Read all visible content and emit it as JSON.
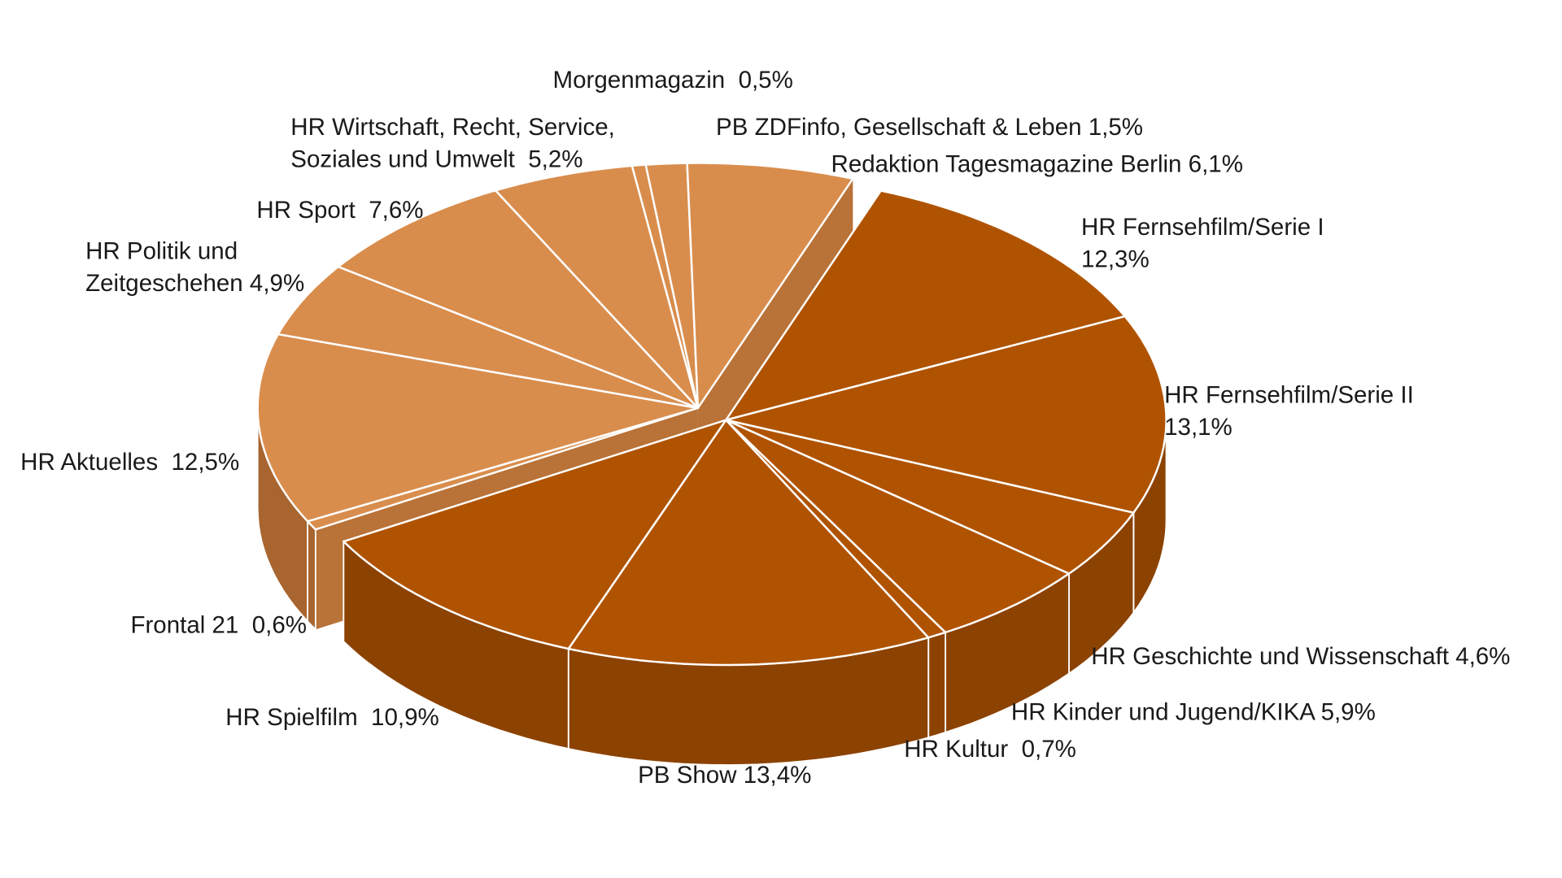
{
  "chart_data": {
    "type": "pie",
    "style": "3d-exploded",
    "title": "",
    "colors": {
      "group_light_top": "#D98D4D",
      "group_light_side": "#A8652F",
      "group_dark_top": "#B05300",
      "group_dark_side": "#8C4200",
      "separator": "#FFFFFF"
    },
    "slices": [
      {
        "name": "HR Fernsehfilm/Serie I",
        "value": 12.3,
        "group": "dark",
        "label_lines": [
          "HR Fernsehfilm/Serie I",
          "12,3%"
        ]
      },
      {
        "name": "HR Fernsehfilm/Serie II",
        "value": 13.1,
        "group": "dark",
        "label_lines": [
          "HR Fernsehfilm/Serie II",
          "13,1%"
        ]
      },
      {
        "name": "HR Geschichte und Wissenschaft",
        "value": 4.6,
        "group": "dark",
        "label_lines": [
          "HR Geschichte und Wissenschaft 4,6%"
        ]
      },
      {
        "name": "HR Kinder und Jugend/KIKA",
        "value": 5.9,
        "group": "dark",
        "label_lines": [
          "HR Kinder und Jugend/KIKA 5,9%"
        ]
      },
      {
        "name": "HR Kultur",
        "value": 0.7,
        "group": "dark",
        "label_lines": [
          "HR Kultur  0,7%"
        ]
      },
      {
        "name": "PB Show",
        "value": 13.4,
        "group": "dark",
        "label_lines": [
          "PB Show 13,4%"
        ]
      },
      {
        "name": "HR Spielfilm",
        "value": 10.9,
        "group": "dark",
        "label_lines": [
          "HR Spielfilm  10,9%"
        ]
      },
      {
        "name": "Frontal 21",
        "value": 0.6,
        "group": "light",
        "label_lines": [
          "Frontal 21  0,6%"
        ]
      },
      {
        "name": "HR Aktuelles",
        "value": 12.5,
        "group": "light",
        "label_lines": [
          "HR Aktuelles  12,5%"
        ]
      },
      {
        "name": "HR Politik und Zeitgeschehen",
        "value": 4.9,
        "group": "light",
        "label_lines": [
          "HR Politik und",
          "Zeitgeschehen 4,9%"
        ]
      },
      {
        "name": "HR Sport",
        "value": 7.6,
        "group": "light",
        "label_lines": [
          "HR Sport  7,6%"
        ]
      },
      {
        "name": "HR Wirtschaft, Recht, Service, Soziales und Umwelt",
        "value": 5.2,
        "group": "light",
        "label_lines": [
          "HR Wirtschaft, Recht, Service,",
          "Soziales und Umwelt  5,2%"
        ]
      },
      {
        "name": "Morgenmagazin",
        "value": 0.5,
        "group": "light",
        "label_lines": [
          "Morgenmagazin  0,5%"
        ]
      },
      {
        "name": "PB ZDFinfo, Gesellschaft & Leben",
        "value": 1.5,
        "group": "light",
        "label_lines": [
          "PB ZDFinfo, Gesellschaft & Leben 1,5%"
        ]
      },
      {
        "name": "Redaktion Tagesmagazine Berlin",
        "value": 6.1,
        "group": "light",
        "label_lines": [
          "Redaktion Tagesmagazine Berlin 6,1%"
        ]
      }
    ]
  }
}
